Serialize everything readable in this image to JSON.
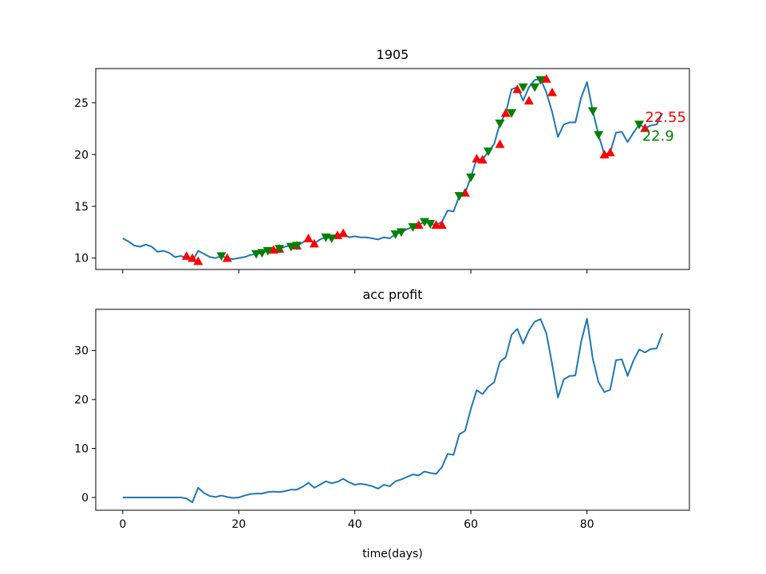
{
  "chart_data": [
    {
      "type": "line",
      "title": "1905",
      "xlim": [
        -4.65,
        97.65
      ],
      "ylim": [
        8.9,
        28.3
      ],
      "yticks": [
        10,
        15,
        20,
        25
      ],
      "xticks": [
        0,
        20,
        40,
        60,
        80
      ],
      "show_xtick_labels": false,
      "grid": false,
      "series": [
        {
          "color": "#1f77b4",
          "x": [
            0,
            1,
            2,
            3,
            4,
            5,
            6,
            7,
            8,
            9,
            10,
            11,
            12,
            13,
            14,
            15,
            16,
            17,
            18,
            19,
            20,
            21,
            22,
            23,
            24,
            25,
            26,
            27,
            28,
            29,
            30,
            31,
            32,
            33,
            34,
            35,
            36,
            37,
            38,
            39,
            40,
            41,
            42,
            43,
            44,
            45,
            46,
            47,
            48,
            49,
            50,
            51,
            52,
            53,
            54,
            55,
            56,
            57,
            58,
            59,
            60,
            61,
            62,
            63,
            64,
            65,
            66,
            67,
            68,
            69,
            70,
            71,
            72,
            73,
            74,
            75,
            76,
            77,
            78,
            79,
            80,
            81,
            82,
            83,
            84,
            85,
            86,
            87,
            88,
            89,
            90,
            91,
            92,
            93
          ],
          "y": [
            11.9,
            11.6,
            11.2,
            11.1,
            11.3,
            11.1,
            10.6,
            10.7,
            10.5,
            10.1,
            10.2,
            10.0,
            9.7,
            10.7,
            10.4,
            10.1,
            10.0,
            10.2,
            10.0,
            9.9,
            10.0,
            10.1,
            10.3,
            10.4,
            10.5,
            10.7,
            10.8,
            10.9,
            11.1,
            11.2,
            11.2,
            11.5,
            11.9,
            11.4,
            11.8,
            12.0,
            11.9,
            12.2,
            12.4,
            12.0,
            12.1,
            12.0,
            12.0,
            11.9,
            11.8,
            12.0,
            11.9,
            12.3,
            12.5,
            12.8,
            13.0,
            13.2,
            13.5,
            13.3,
            13.2,
            13.5,
            14.6,
            14.5,
            16.0,
            16.3,
            17.8,
            19.6,
            19.5,
            20.3,
            21.0,
            23.0,
            24.0,
            26.3,
            26.5,
            25.2,
            26.5,
            27.2,
            27.3,
            26.0,
            24.1,
            21.7,
            22.9,
            23.1,
            23.1,
            25.5,
            27.0,
            24.2,
            21.9,
            20.0,
            20.2,
            22.1,
            22.2,
            21.2,
            22.1,
            22.9,
            22.55,
            22.8,
            22.9,
            24.0
          ]
        }
      ],
      "markers_buy": {
        "marker": "triangle-up",
        "color": "#ff0000",
        "x": [
          11,
          12,
          13,
          18,
          26,
          27,
          30,
          32,
          33,
          37,
          38,
          51,
          54,
          55,
          59,
          61,
          62,
          65,
          66,
          68,
          70,
          73,
          74,
          83,
          84,
          90
        ],
        "y": [
          10.2,
          10.0,
          9.7,
          10.0,
          10.8,
          10.9,
          11.2,
          11.9,
          11.4,
          12.2,
          12.4,
          13.2,
          13.2,
          13.2,
          16.3,
          19.6,
          19.5,
          21.0,
          24.0,
          26.3,
          25.2,
          27.3,
          26.0,
          20.0,
          20.2,
          22.55
        ]
      },
      "markers_sell": {
        "marker": "triangle-down",
        "color": "#008000",
        "x": [
          17,
          23,
          24,
          25,
          27,
          29,
          30,
          35,
          36,
          47,
          48,
          50,
          52,
          53,
          58,
          60,
          63,
          65,
          67,
          69,
          71,
          72,
          81,
          82,
          89
        ],
        "y": [
          10.2,
          10.4,
          10.5,
          10.7,
          10.9,
          11.1,
          11.2,
          12.0,
          11.9,
          12.3,
          12.5,
          13.0,
          13.5,
          13.3,
          16.0,
          17.8,
          20.3,
          23.0,
          24.0,
          26.5,
          26.5,
          27.2,
          24.2,
          21.9,
          22.9
        ]
      },
      "annotations": [
        {
          "text": "22.55",
          "color": "#ff0000",
          "x": 90,
          "y": 23.6
        },
        {
          "text": "22.9",
          "color": "#008000",
          "x": 89.5,
          "y": 21.8
        }
      ]
    },
    {
      "type": "line",
      "title": "acc profit",
      "xlabel": "time(days)",
      "xlim": [
        -4.65,
        97.65
      ],
      "ylim": [
        -2.6,
        38.4
      ],
      "yticks": [
        0,
        10,
        20,
        30
      ],
      "xticks": [
        0,
        20,
        40,
        60,
        80
      ],
      "grid": false,
      "series": [
        {
          "color": "#1f77b4",
          "x": [
            0,
            1,
            2,
            3,
            4,
            5,
            6,
            7,
            8,
            9,
            10,
            11,
            12,
            13,
            14,
            15,
            16,
            17,
            18,
            19,
            20,
            21,
            22,
            23,
            24,
            25,
            26,
            27,
            28,
            29,
            30,
            31,
            32,
            33,
            34,
            35,
            36,
            37,
            38,
            39,
            40,
            41,
            42,
            43,
            44,
            45,
            46,
            47,
            48,
            49,
            50,
            51,
            52,
            53,
            54,
            55,
            56,
            57,
            58,
            59,
            60,
            61,
            62,
            63,
            64,
            65,
            66,
            67,
            68,
            69,
            70,
            71,
            72,
            73,
            74,
            75,
            76,
            77,
            78,
            79,
            80,
            81,
            82,
            83,
            84,
            85,
            86,
            87,
            88,
            89,
            90,
            91,
            92,
            93
          ],
          "y": [
            0,
            0,
            0,
            0,
            0,
            0,
            0,
            0,
            0,
            0,
            0,
            -0.2,
            -1.0,
            2.0,
            0.9,
            0.3,
            0.1,
            0.4,
            0.1,
            -0.1,
            0,
            0.4,
            0.7,
            0.8,
            0.8,
            1.1,
            1.2,
            1.1,
            1.3,
            1.6,
            1.6,
            2.2,
            3.0,
            2.0,
            2.6,
            3.3,
            2.9,
            3.2,
            3.8,
            3.1,
            2.6,
            2.8,
            2.6,
            2.3,
            1.8,
            2.6,
            2.3,
            3.3,
            3.7,
            4.2,
            4.7,
            4.5,
            5.3,
            5.0,
            4.8,
            6.2,
            8.9,
            8.7,
            12.9,
            13.6,
            18.1,
            21.9,
            21.1,
            22.6,
            23.5,
            27.7,
            28.6,
            33.2,
            34.4,
            31.4,
            34.1,
            35.9,
            36.4,
            33.5,
            27.2,
            20.4,
            24.1,
            24.8,
            24.9,
            31.8,
            36.5,
            28.3,
            23.5,
            21.5,
            22.0,
            28.0,
            28.2,
            24.8,
            27.9,
            30.2,
            29.6,
            30.3,
            30.4,
            33.5
          ]
        }
      ]
    }
  ]
}
